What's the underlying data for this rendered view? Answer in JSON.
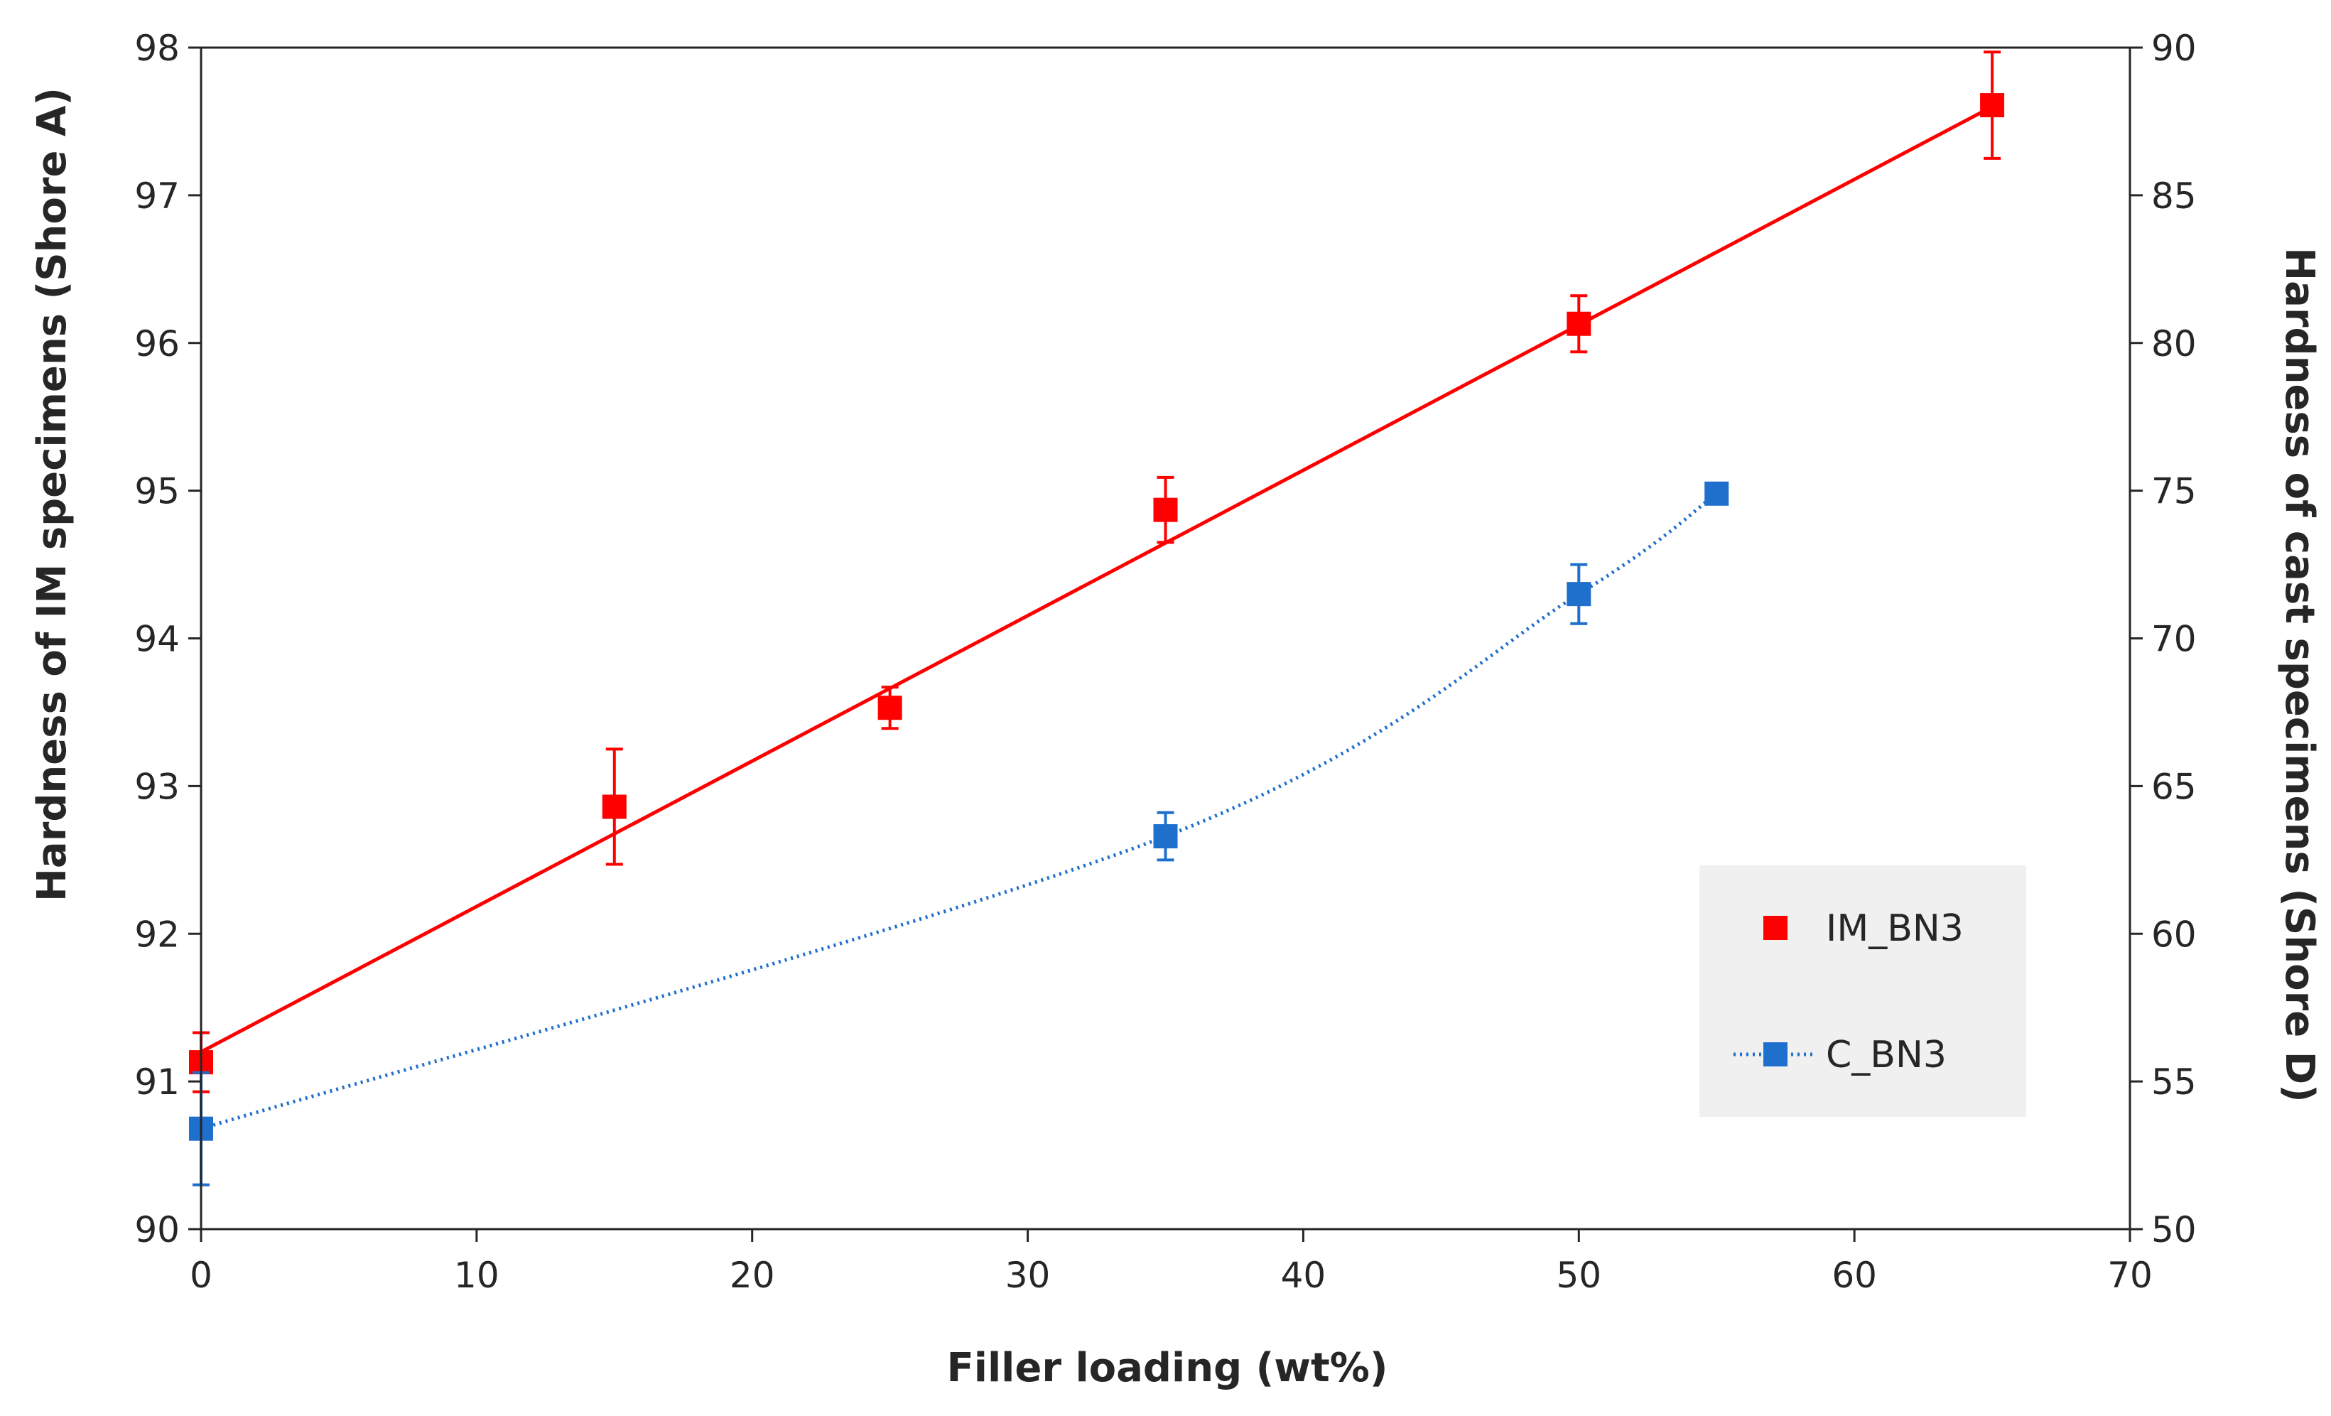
{
  "chart_data": {
    "type": "scatter",
    "title": "",
    "xlabel": "Filler loading (wt%)",
    "ylabel_left": "Hardness of IM specimens (Shore A)",
    "ylabel_right": "Hardness of cast specimens (Shore D)",
    "xlim": [
      0,
      70
    ],
    "ylim_left": [
      90,
      98
    ],
    "ylim_right": [
      50,
      90
    ],
    "x_ticks": [
      0,
      10,
      20,
      30,
      40,
      50,
      60,
      70
    ],
    "y_left_ticks": [
      90,
      91,
      92,
      93,
      94,
      95,
      96,
      97,
      98
    ],
    "y_right_ticks": [
      50,
      55,
      60,
      65,
      70,
      75,
      80,
      85,
      90
    ],
    "grid": false,
    "legend_position": "bottom-right",
    "series": [
      {
        "name": "IM_BN3",
        "axis": "left",
        "color": "#ff0000",
        "marker": "square",
        "line": "linear-fit",
        "fit": {
          "x": [
            0,
            65
          ],
          "y": [
            91.2,
            97.6
          ]
        },
        "x": [
          0,
          15,
          25,
          35,
          50,
          65
        ],
        "y": [
          91.13,
          92.86,
          93.53,
          94.87,
          96.13,
          97.61
        ],
        "err": [
          0.2,
          0.39,
          0.14,
          0.22,
          0.19,
          0.36
        ]
      },
      {
        "name": "C_BN3",
        "axis": "right",
        "color": "#1f6fcc",
        "marker": "square",
        "line": "dotted-smooth",
        "x": [
          0,
          35,
          50,
          55
        ],
        "y": [
          53.4,
          63.3,
          71.5,
          74.9
        ],
        "err": [
          1.9,
          0.8,
          1.0,
          0.0
        ]
      }
    ]
  }
}
